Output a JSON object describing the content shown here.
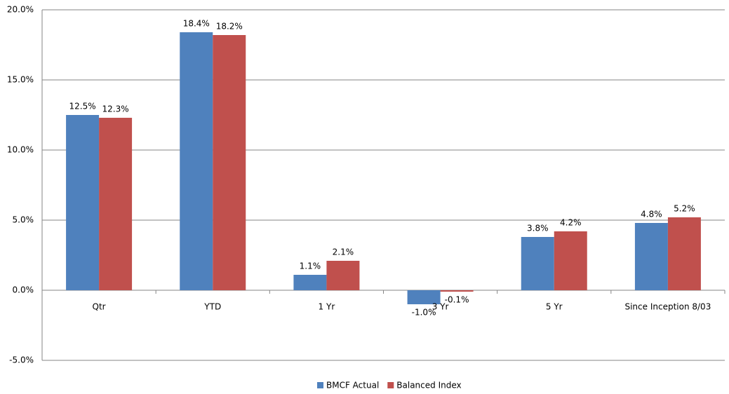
{
  "chart_data": {
    "type": "bar",
    "categories": [
      "Qtr",
      "YTD",
      "1 Yr",
      "3 Yr",
      "5 Yr",
      "Since Inception 8/03"
    ],
    "series": [
      {
        "name": "BMCF Actual",
        "color": "#4f81bd",
        "values": [
          12.5,
          18.4,
          1.1,
          -1.0,
          3.8,
          4.8
        ],
        "value_labels": [
          "12.5%",
          "18.4%",
          "1.1%",
          "-1.0%",
          "3.8%",
          "4.8%"
        ]
      },
      {
        "name": "Balanced Index",
        "color": "#c0504d",
        "values": [
          12.3,
          18.2,
          2.1,
          -0.1,
          4.2,
          5.2
        ],
        "value_labels": [
          "12.3%",
          "18.2%",
          "2.1%",
          "-0.1%",
          "4.2%",
          "5.2%"
        ]
      }
    ],
    "ylim": [
      -5,
      20
    ],
    "yticks": [
      {
        "value": -5,
        "label": "-5.0%"
      },
      {
        "value": 0,
        "label": "0.0%"
      },
      {
        "value": 5,
        "label": "5.0%"
      },
      {
        "value": 10,
        "label": "10.0%"
      },
      {
        "value": 15,
        "label": "15.0%"
      },
      {
        "value": 20,
        "label": "20.0%"
      }
    ],
    "grid": true,
    "legend": "bottom"
  }
}
